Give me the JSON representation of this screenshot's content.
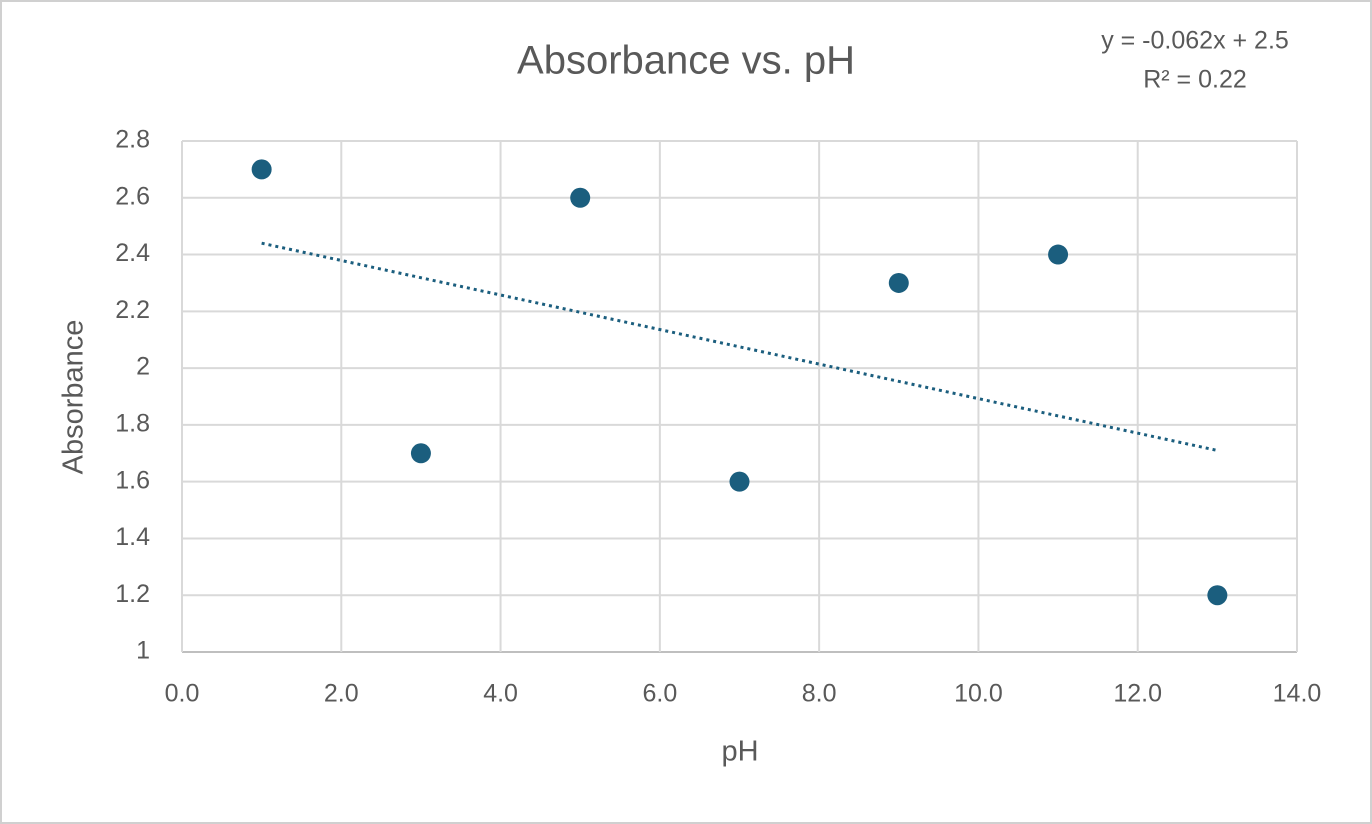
{
  "chart_data": {
    "type": "scatter",
    "title": "Absorbance vs. pH",
    "x_label": "pH",
    "y_label": "Absorbance",
    "annotations": [
      "y = -0.062x + 2.5",
      "R² = 0.22"
    ],
    "series": [
      {
        "name": "Absorbance",
        "color": "#1b5e7e",
        "x": [
          1,
          3,
          5,
          7,
          9,
          11,
          13
        ],
        "values": [
          2.7,
          1.7,
          2.6,
          1.6,
          2.3,
          2.4,
          1.2
        ]
      }
    ],
    "trendline": {
      "color": "#1b5e7e",
      "x": [
        1,
        13
      ],
      "values": [
        2.44,
        1.71
      ]
    },
    "xlim": [
      0,
      14
    ],
    "xticks": [
      {
        "value": 0,
        "label": "0.0"
      },
      {
        "value": 2,
        "label": "2.0"
      },
      {
        "value": 4,
        "label": "4.0"
      },
      {
        "value": 6,
        "label": "6.0"
      },
      {
        "value": 8,
        "label": "8.0"
      },
      {
        "value": 10,
        "label": "10.0"
      },
      {
        "value": 12,
        "label": "12.0"
      },
      {
        "value": 14,
        "label": "14.0"
      }
    ],
    "ylim": [
      1,
      2.8
    ],
    "yticks": [
      1,
      1.2,
      1.4,
      1.6,
      1.8,
      2,
      2.2,
      2.4,
      2.6,
      2.8
    ],
    "grid": true
  }
}
